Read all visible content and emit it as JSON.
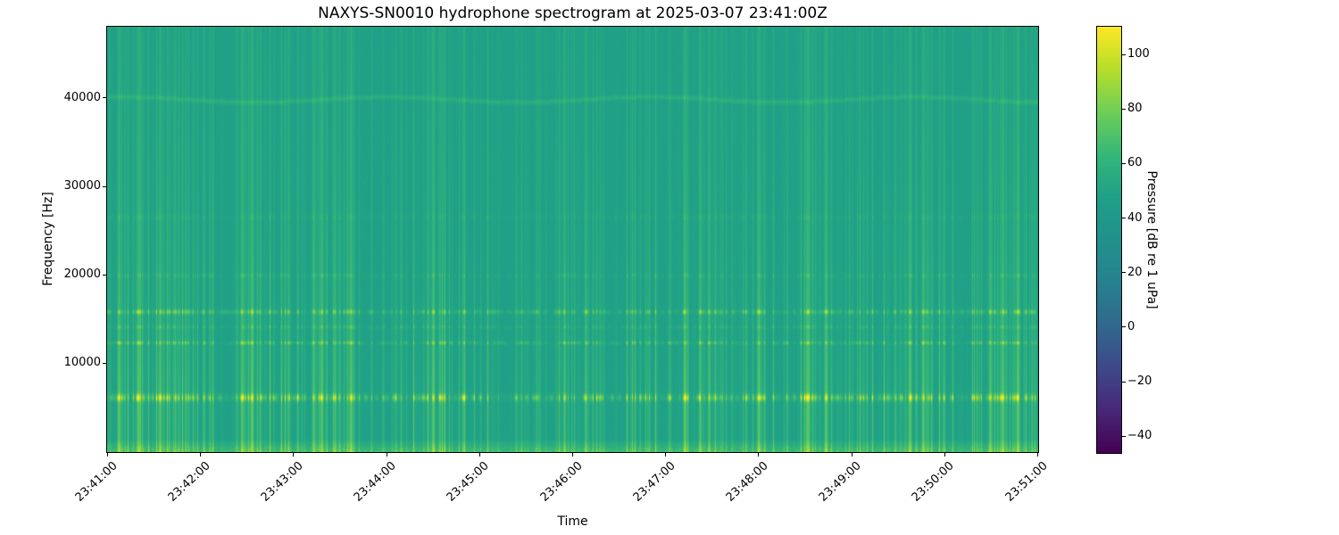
{
  "figure": {
    "title": "NAXYS-SN0010 hydrophone spectrogram at 2025-03-07 23:41:00Z",
    "background_color": "#ffffff"
  },
  "chart_data": {
    "type": "heatmap",
    "subtype": "spectrogram",
    "title": "NAXYS-SN0010 hydrophone spectrogram at 2025-03-07 23:41:00Z",
    "xlabel": "Time",
    "ylabel": "Frequency [Hz]",
    "x_ticks": [
      "23:41:00",
      "23:42:00",
      "23:43:00",
      "23:44:00",
      "23:45:00",
      "23:46:00",
      "23:47:00",
      "23:48:00",
      "23:49:00",
      "23:50:00",
      "23:51:00"
    ],
    "x_range": [
      "23:41:00",
      "23:51:00"
    ],
    "y_ticks": [
      10000,
      20000,
      30000,
      40000
    ],
    "y_range_hz": [
      0,
      48000
    ],
    "grid": false,
    "colorbar": {
      "label": "Pressure [dB re 1 uPa]",
      "ticks": [
        100,
        80,
        60,
        40,
        20,
        0,
        -20,
        -40
      ],
      "vmin": -46,
      "vmax": 110,
      "colormap": "viridis",
      "position": "right"
    },
    "background_level_db": 48,
    "features": {
      "tonal_bands": [
        {
          "freq_hz": 6100,
          "bandwidth_hz": 650,
          "peak_db": 95,
          "pattern": "dashed"
        },
        {
          "freq_hz": 12300,
          "bandwidth_hz": 320,
          "peak_db": 74,
          "pattern": "dashed"
        },
        {
          "freq_hz": 14100,
          "bandwidth_hz": 300,
          "peak_db": 70,
          "pattern": "dashed-faint"
        },
        {
          "freq_hz": 15800,
          "bandwidth_hz": 420,
          "peak_db": 78,
          "pattern": "dashed"
        },
        {
          "freq_hz": 19900,
          "bandwidth_hz": 380,
          "peak_db": 64,
          "pattern": "dashed-faint"
        },
        {
          "freq_hz": 26500,
          "bandwidth_hz": 500,
          "peak_db": 58,
          "pattern": "dashed-faint"
        },
        {
          "freq_hz": 39800,
          "bandwidth_hz": 260,
          "peak_db": 58,
          "pattern": "continuous-wavy"
        },
        {
          "freq_hz": 300,
          "bandwidth_hz": 1200,
          "peak_db": 74,
          "pattern": "continuous-noisy"
        }
      ],
      "broadband_clicks": {
        "description": "dense vertical transient streaks, strongest below ~16 kHz, sparser mid-recording",
        "count": 430,
        "seed": 20250307,
        "min_db_boost": 2,
        "max_db_boost": 27,
        "quiet_interval_x": [
          0.4,
          0.58
        ],
        "event_cluster_x": [
          0.012,
          0.034,
          0.057,
          0.145,
          0.155,
          0.23,
          0.262,
          0.35,
          0.62,
          0.7,
          0.752,
          0.772,
          0.862,
          0.876,
          0.948,
          0.962,
          0.978
        ]
      }
    },
    "viridis_stops": [
      "#440154",
      "#482878",
      "#3e4989",
      "#31688e",
      "#26828e",
      "#21918c",
      "#1fa088",
      "#35b779",
      "#6ece58",
      "#b5de2b",
      "#fde725"
    ]
  }
}
